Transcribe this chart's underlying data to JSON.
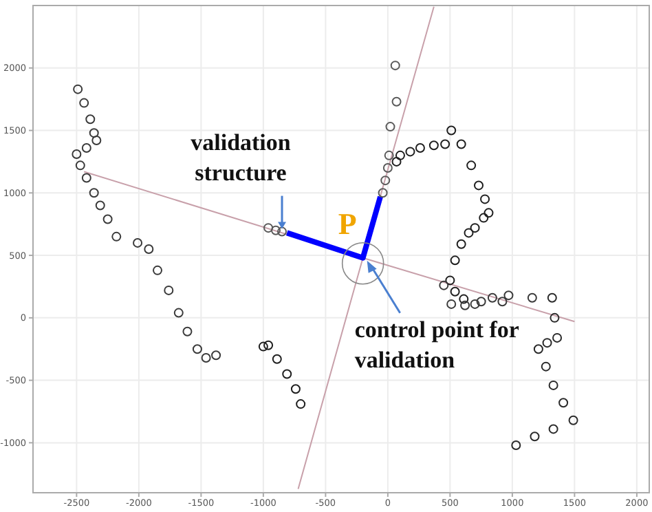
{
  "chart_data": {
    "type": "scatter",
    "marker": "circle",
    "grid": true,
    "xlim": [
      -2850,
      2100
    ],
    "ylim": [
      -1400,
      2500
    ],
    "xticks": [
      -2500,
      -2000,
      -1500,
      -1000,
      -500,
      0,
      500,
      1000,
      1500,
      2000
    ],
    "yticks": [
      -1000,
      -500,
      0,
      500,
      1000,
      1500,
      2000
    ],
    "series": [
      {
        "type": "line",
        "color": "#c8a0aa",
        "marker": "none",
        "line_style": "solid",
        "x": [
          -2440,
          -200,
          1500
        ],
        "values": [
          1170,
          480,
          -30
        ]
      },
      {
        "type": "line",
        "color": "#c8a0aa",
        "marker": "none",
        "line_style": "solid",
        "x": [
          -720,
          -200,
          370
        ],
        "values": [
          -1370,
          480,
          2490
        ]
      },
      {
        "color": "#3a3a3a",
        "x": [
          -2490,
          -2440,
          -2390,
          -2360,
          -2340,
          -2420,
          -2500,
          -2470,
          -2420,
          -2360,
          -2310,
          -2250,
          -2180
        ],
        "values": [
          1830,
          1720,
          1590,
          1480,
          1420,
          1360,
          1310,
          1220,
          1120,
          1000,
          900,
          790,
          650
        ]
      },
      {
        "color": "#3a3a3a",
        "x": [
          -2010,
          -1920,
          -1850,
          -1760,
          -1680,
          -1610,
          -1530,
          -1460,
          -1380
        ],
        "values": [
          600,
          550,
          380,
          220,
          40,
          -110,
          -250,
          -320,
          -300
        ]
      },
      {
        "color": "#1e1e1e",
        "x": [
          -1000,
          -960,
          -890,
          -810,
          -740,
          -700
        ],
        "values": [
          -230,
          -220,
          -330,
          -450,
          -570,
          -690
        ]
      },
      {
        "color": "#5a5a5a",
        "x": [
          -960,
          -900,
          -850,
          -40,
          -20,
          0,
          10,
          20,
          70,
          60
        ],
        "values": [
          720,
          700,
          690,
          1000,
          1100,
          1200,
          1300,
          1530,
          1730,
          2020
        ]
      },
      {
        "type": "line",
        "color": "#0000ff",
        "marker": "none",
        "line_style": "solid",
        "x": [
          -810,
          -200,
          -60
        ],
        "values": [
          680,
          480,
          970
        ]
      },
      {
        "color": "#1e1e1e",
        "x": [
          70,
          100,
          180,
          260,
          370,
          460
        ],
        "values": [
          1250,
          1300,
          1330,
          1360,
          1380,
          1390
        ]
      },
      {
        "color": "#1e1e1e",
        "x": [
          510,
          590,
          670,
          730,
          780,
          810,
          770,
          700,
          650,
          590,
          540,
          500,
          540,
          610
        ],
        "values": [
          1500,
          1390,
          1220,
          1060,
          950,
          840,
          800,
          720,
          680,
          590,
          460,
          300,
          210,
          150
        ]
      },
      {
        "color": "#3a3a3a",
        "x": [
          450,
          510,
          620,
          700,
          750,
          840,
          920,
          970,
          1160
        ],
        "values": [
          260,
          110,
          100,
          110,
          130,
          160,
          130,
          180,
          160
        ]
      },
      {
        "color": "#2a2a2a",
        "x": [
          1320,
          1340,
          1360,
          1280,
          1210,
          1270,
          1330,
          1410,
          1490,
          1330,
          1180,
          1030
        ],
        "values": [
          160,
          0,
          -160,
          -200,
          -250,
          -390,
          -540,
          -680,
          -820,
          -890,
          -950,
          -1020
        ]
      }
    ],
    "annotations": [
      "validation structure",
      "P",
      "control point for validation"
    ]
  }
}
